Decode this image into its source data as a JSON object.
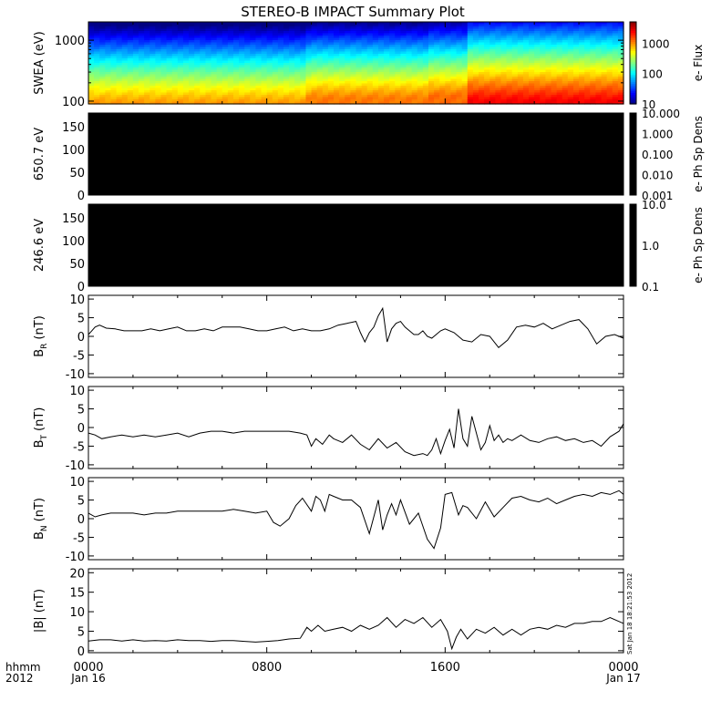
{
  "title": "STEREO-B IMPACT Summary Plot",
  "timestamp": "Sat Jan 18 18:21:53 2012",
  "time_axis": {
    "corner_top": "hhmm",
    "corner_bottom": "2012",
    "ticks": [
      {
        "hour": 0,
        "label": "0000",
        "sub": "Jan 16"
      },
      {
        "hour": 8,
        "label": "0800",
        "sub": ""
      },
      {
        "hour": 16,
        "label": "1600",
        "sub": ""
      },
      {
        "hour": 24,
        "label": "0000",
        "sub": "Jan 17"
      }
    ]
  },
  "chart_data": [
    {
      "type": "heatmap",
      "ylabel": "SWEA (eV)",
      "scale": "log",
      "ylim": [
        90,
        2000
      ],
      "y_ticks": [
        {
          "v": 100,
          "label": "100"
        },
        {
          "v": 1000,
          "label": "1000"
        }
      ],
      "colorbar": {
        "label": "e- Flux",
        "scale": "log",
        "range": [
          10,
          5000
        ],
        "ticks": [
          {
            "v": 10,
            "label": "10"
          },
          {
            "v": 100,
            "label": "100"
          },
          {
            "v": 1000,
            "label": "1000"
          }
        ]
      },
      "flux_profile": {
        "hours": [
          0,
          9.8,
          9.9,
          15.2,
          15.3,
          17.0,
          17.1,
          24
        ],
        "core_peak_eV": [
          95,
          95,
          110,
          110,
          120,
          120,
          100,
          100
        ],
        "core_peak_flux": [
          900,
          900,
          1100,
          1100,
          1200,
          1200,
          2400,
          2400
        ],
        "high_energy_flux": [
          8,
          8,
          10,
          10,
          12,
          12,
          22,
          22
        ]
      },
      "colors": {
        "black": "#000000"
      }
    },
    {
      "type": "heatmap",
      "ylabel": "650.7 eV",
      "ylim": [
        0,
        180
      ],
      "y_ticks": [
        {
          "v": 0,
          "label": "0"
        },
        {
          "v": 50,
          "label": "50"
        },
        {
          "v": 100,
          "label": "100"
        },
        {
          "v": 150,
          "label": "150"
        }
      ],
      "colorbar": {
        "label": "e- Ph Sp Dens",
        "scale": "log",
        "ticks": [
          {
            "v": 0.001,
            "label": "0.001"
          },
          {
            "v": 0.01,
            "label": "0.010"
          },
          {
            "v": 0.1,
            "label": "0.100"
          },
          {
            "v": 1,
            "label": "1.000"
          },
          {
            "v": 10,
            "label": "10.000"
          }
        ],
        "range": [
          0.001,
          10
        ]
      },
      "fill": "#000000"
    },
    {
      "type": "heatmap",
      "ylabel": "246.6 eV",
      "ylim": [
        0,
        180
      ],
      "y_ticks": [
        {
          "v": 0,
          "label": "0"
        },
        {
          "v": 50,
          "label": "50"
        },
        {
          "v": 100,
          "label": "100"
        },
        {
          "v": 150,
          "label": "150"
        }
      ],
      "colorbar": {
        "label": "e- Ph Sp Dens",
        "scale": "log",
        "ticks": [
          {
            "v": 0.1,
            "label": "0.1"
          },
          {
            "v": 1,
            "label": "1.0"
          },
          {
            "v": 10,
            "label": "10.0"
          }
        ],
        "range": [
          0.1,
          10
        ]
      },
      "fill": "#000000"
    },
    {
      "type": "line",
      "ylabel_main": "B",
      "ylabel_sub": "R",
      "ylabel_unit": "(nT)",
      "ylim": [
        -11,
        11
      ],
      "y_ticks": [
        {
          "v": -10,
          "label": "-10"
        },
        {
          "v": -5,
          "label": "-5"
        },
        {
          "v": 0,
          "label": "0"
        },
        {
          "v": 5,
          "label": "5"
        },
        {
          "v": 10,
          "label": "10"
        }
      ],
      "x": [
        0.0,
        0.15,
        0.3,
        0.5,
        0.8,
        1.2,
        1.6,
        2.0,
        2.4,
        2.8,
        3.2,
        3.6,
        4.0,
        4.4,
        4.8,
        5.2,
        5.6,
        6.0,
        6.4,
        6.8,
        7.2,
        7.6,
        8.0,
        8.4,
        8.8,
        9.2,
        9.6,
        10.0,
        10.4,
        10.8,
        11.2,
        11.6,
        12.0,
        12.2,
        12.4,
        12.6,
        12.8,
        13.0,
        13.2,
        13.4,
        13.6,
        13.8,
        14.0,
        14.2,
        14.4,
        14.6,
        14.8,
        15.0,
        15.2,
        15.4,
        15.6,
        15.8,
        16.0,
        16.4,
        16.8,
        17.2,
        17.6,
        18.0,
        18.4,
        18.8,
        19.2,
        19.6,
        20.0,
        20.4,
        20.8,
        21.2,
        21.6,
        22.0,
        22.4,
        22.8,
        23.2,
        23.6,
        24.0
      ],
      "y": [
        0.5,
        1.5,
        2.5,
        3.0,
        2.2,
        2.0,
        1.5,
        1.5,
        1.5,
        2.0,
        1.5,
        2.0,
        2.5,
        1.5,
        1.5,
        2.0,
        1.5,
        2.5,
        2.5,
        2.5,
        2.0,
        1.5,
        1.5,
        2.0,
        2.5,
        1.5,
        2.0,
        1.5,
        1.5,
        2.0,
        3.0,
        3.5,
        4.0,
        1.0,
        -1.5,
        1.0,
        2.5,
        5.5,
        7.5,
        -1.5,
        2.0,
        3.5,
        4.0,
        2.5,
        1.5,
        0.5,
        0.5,
        1.5,
        0.0,
        -0.5,
        0.5,
        1.5,
        2.0,
        1.0,
        -1.0,
        -1.5,
        0.5,
        0.0,
        -3.0,
        -1.0,
        2.5,
        3.0,
        2.5,
        3.5,
        2.0,
        3.0,
        4.0,
        4.5,
        2.0,
        -2.0,
        0.0,
        0.5,
        -0.5
      ]
    },
    {
      "type": "line",
      "ylabel_main": "B",
      "ylabel_sub": "T",
      "ylabel_unit": "(nT)",
      "ylim": [
        -11,
        11
      ],
      "y_ticks": [
        {
          "v": -10,
          "label": "-10"
        },
        {
          "v": -5,
          "label": "-5"
        },
        {
          "v": 0,
          "label": "0"
        },
        {
          "v": 5,
          "label": "5"
        },
        {
          "v": 10,
          "label": "10"
        }
      ],
      "x": [
        0.0,
        0.3,
        0.6,
        1.0,
        1.5,
        2.0,
        2.5,
        3.0,
        3.5,
        4.0,
        4.5,
        5.0,
        5.5,
        6.0,
        6.5,
        7.0,
        7.5,
        8.0,
        8.5,
        9.0,
        9.5,
        9.8,
        10.0,
        10.2,
        10.5,
        10.8,
        11.0,
        11.4,
        11.8,
        12.2,
        12.6,
        13.0,
        13.4,
        13.8,
        14.2,
        14.6,
        15.0,
        15.2,
        15.4,
        15.6,
        15.8,
        16.0,
        16.2,
        16.4,
        16.6,
        16.8,
        17.0,
        17.2,
        17.4,
        17.6,
        17.8,
        18.0,
        18.2,
        18.4,
        18.6,
        18.8,
        19.0,
        19.4,
        19.8,
        20.2,
        20.6,
        21.0,
        21.4,
        21.8,
        22.2,
        22.6,
        23.0,
        23.4,
        23.8,
        24.0
      ],
      "y": [
        -1.5,
        -2.0,
        -3.0,
        -2.5,
        -2.0,
        -2.5,
        -2.0,
        -2.5,
        -2.0,
        -1.5,
        -2.5,
        -1.5,
        -1.0,
        -1.0,
        -1.5,
        -1.0,
        -1.0,
        -1.0,
        -1.0,
        -1.0,
        -1.5,
        -2.0,
        -5.0,
        -3.0,
        -4.5,
        -2.0,
        -3.0,
        -4.0,
        -2.0,
        -4.5,
        -6.0,
        -3.0,
        -5.5,
        -4.0,
        -6.5,
        -7.5,
        -7.0,
        -7.5,
        -6.0,
        -3.0,
        -7.0,
        -3.5,
        -0.5,
        -5.5,
        5.0,
        -3.0,
        -5.0,
        3.0,
        -1.5,
        -6.0,
        -4.0,
        0.5,
        -3.5,
        -2.0,
        -4.0,
        -3.0,
        -3.5,
        -2.0,
        -3.5,
        -4.0,
        -3.0,
        -2.5,
        -3.5,
        -3.0,
        -4.0,
        -3.5,
        -5.0,
        -2.5,
        -1.0,
        1.0
      ]
    },
    {
      "type": "line",
      "ylabel_main": "B",
      "ylabel_sub": "N",
      "ylabel_unit": "(nT)",
      "ylim": [
        -11,
        11
      ],
      "y_ticks": [
        {
          "v": -10,
          "label": "-10"
        },
        {
          "v": -5,
          "label": "-5"
        },
        {
          "v": 0,
          "label": "0"
        },
        {
          "v": 5,
          "label": "5"
        },
        {
          "v": 10,
          "label": "10"
        }
      ],
      "x": [
        0.0,
        0.3,
        0.6,
        1.0,
        1.5,
        2.0,
        2.5,
        3.0,
        3.5,
        4.0,
        4.5,
        5.0,
        5.5,
        6.0,
        6.5,
        7.0,
        7.5,
        8.0,
        8.3,
        8.6,
        9.0,
        9.3,
        9.6,
        10.0,
        10.2,
        10.4,
        10.6,
        10.8,
        11.0,
        11.4,
        11.8,
        12.2,
        12.6,
        13.0,
        13.2,
        13.4,
        13.6,
        13.8,
        14.0,
        14.4,
        14.8,
        15.2,
        15.5,
        15.8,
        16.0,
        16.3,
        16.6,
        16.8,
        17.0,
        17.4,
        17.8,
        18.2,
        18.6,
        19.0,
        19.4,
        19.8,
        20.2,
        20.6,
        21.0,
        21.4,
        21.8,
        22.2,
        22.6,
        23.0,
        23.4,
        23.8,
        24.0
      ],
      "y": [
        1.5,
        0.5,
        1.0,
        1.5,
        1.5,
        1.5,
        1.0,
        1.5,
        1.5,
        2.0,
        2.0,
        2.0,
        2.0,
        2.0,
        2.5,
        2.0,
        1.5,
        2.0,
        -1.0,
        -2.0,
        0.0,
        3.5,
        5.5,
        2.0,
        6.0,
        5.0,
        2.0,
        6.5,
        6.0,
        5.0,
        5.0,
        3.0,
        -4.0,
        5.0,
        -3.0,
        1.0,
        4.0,
        1.0,
        5.0,
        -1.5,
        1.5,
        -5.5,
        -8.0,
        -2.5,
        6.5,
        7.0,
        1.0,
        3.5,
        3.0,
        0.0,
        4.5,
        0.5,
        3.0,
        5.5,
        6.0,
        5.0,
        4.5,
        5.5,
        4.0,
        5.0,
        6.0,
        6.5,
        6.0,
        7.0,
        6.5,
        7.5,
        6.5
      ]
    },
    {
      "type": "line",
      "ylabel": "|B| (nT)",
      "ylim": [
        -0.5,
        21
      ],
      "y_ticks": [
        {
          "v": 0,
          "label": "0"
        },
        {
          "v": 5,
          "label": "5"
        },
        {
          "v": 10,
          "label": "10"
        },
        {
          "v": 15,
          "label": "15"
        },
        {
          "v": 20,
          "label": "20"
        }
      ],
      "x": [
        0.0,
        0.5,
        1.0,
        1.5,
        2.0,
        2.5,
        3.0,
        3.5,
        4.0,
        4.5,
        5.0,
        5.5,
        6.0,
        6.5,
        7.0,
        7.5,
        8.0,
        8.5,
        9.0,
        9.5,
        9.8,
        10.0,
        10.3,
        10.6,
        11.0,
        11.4,
        11.8,
        12.2,
        12.6,
        13.0,
        13.4,
        13.8,
        14.2,
        14.6,
        15.0,
        15.4,
        15.8,
        16.1,
        16.3,
        16.5,
        16.7,
        17.0,
        17.4,
        17.8,
        18.2,
        18.6,
        19.0,
        19.4,
        19.8,
        20.2,
        20.6,
        21.0,
        21.4,
        21.8,
        22.2,
        22.6,
        23.0,
        23.4,
        23.8,
        24.0
      ],
      "y": [
        2.5,
        2.8,
        2.8,
        2.5,
        2.8,
        2.5,
        2.6,
        2.5,
        2.8,
        2.6,
        2.6,
        2.4,
        2.6,
        2.6,
        2.4,
        2.2,
        2.4,
        2.6,
        3.0,
        3.2,
        6.0,
        5.0,
        6.5,
        5.0,
        5.5,
        6.0,
        5.0,
        6.5,
        5.5,
        6.5,
        8.5,
        6.0,
        8.0,
        7.0,
        8.5,
        6.0,
        8.0,
        5.0,
        0.5,
        3.5,
        5.5,
        3.0,
        5.5,
        4.5,
        6.0,
        4.0,
        5.5,
        4.0,
        5.5,
        6.0,
        5.5,
        6.5,
        6.0,
        7.0,
        7.0,
        7.5,
        7.5,
        8.5,
        7.5,
        7.0
      ]
    }
  ]
}
